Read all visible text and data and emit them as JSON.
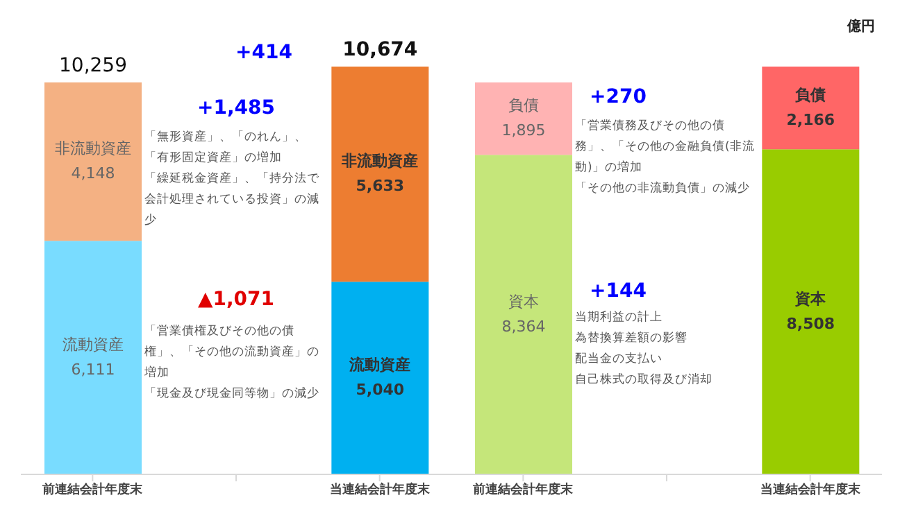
{
  "chart_data": [
    {
      "type": "bar",
      "stacked": true,
      "categories": [
        "前連結会計年度末",
        null,
        "当連結会計年度末"
      ],
      "series": [
        {
          "name": "流動資産",
          "colors": [
            "#79dcff",
            null,
            "#00b0f0"
          ],
          "values": [
            6111,
            null,
            5040
          ],
          "value_labels": [
            "6,111",
            null,
            "5,040"
          ]
        },
        {
          "name": "非流動資産",
          "colors": [
            "#f4b183",
            null,
            "#ed7d31"
          ],
          "values": [
            4148,
            null,
            5633
          ],
          "value_labels": [
            "4,148",
            null,
            "5,633"
          ]
        }
      ],
      "totals": [
        "10,259",
        null,
        "10,674"
      ],
      "legend": false,
      "annotations": [
        "+414",
        "+1,485",
        "「無形資産」、「のれん」、「有形固定資産」の増加",
        "「繰延税金資産」、「持分法で会計処理されている投資」の減少",
        "▲1,071",
        "「営業債権及びその他の債権」、「その他の流動資産」の増加",
        "「現金及び現金同等物」の減少"
      ]
    },
    {
      "type": "bar",
      "stacked": true,
      "categories": [
        "前連結会計年度末",
        null,
        "当連結会計年度末"
      ],
      "series": [
        {
          "name": "資本",
          "colors": [
            "#c5e67a",
            null,
            "#99cc00"
          ],
          "values": [
            8364,
            null,
            8508
          ],
          "value_labels": [
            "8,364",
            null,
            "8,508"
          ]
        },
        {
          "name": "負債",
          "colors": [
            "#ffb3b3",
            null,
            "#ff6666"
          ],
          "values": [
            1895,
            null,
            2166
          ],
          "value_labels": [
            "1,895",
            null,
            "2,166"
          ]
        }
      ],
      "legend": false,
      "annotations": [
        "億円",
        "+270",
        "「営業債務及びその他の債務」、「その他の金融負債(非流動)」の増加",
        "「その他の非流動負債」の減少",
        "+144",
        "当期利益の計上",
        "為替換算差額の影響",
        "配当金の支払い",
        "自己株式の取得及び消却"
      ]
    }
  ]
}
